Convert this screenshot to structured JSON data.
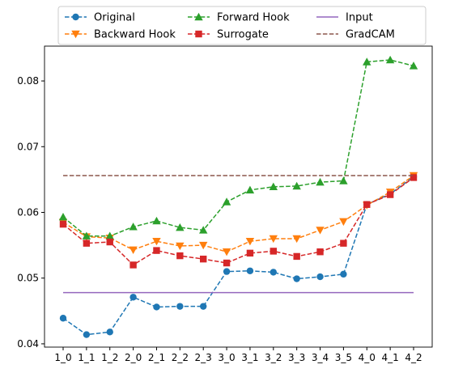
{
  "chart_data": {
    "type": "line",
    "title": "",
    "xlabel": "",
    "ylabel": "",
    "categories": [
      "1_0",
      "1_1",
      "1_2",
      "2_0",
      "2_1",
      "2_2",
      "2_3",
      "3_0",
      "3_1",
      "3_2",
      "3_3",
      "3_4",
      "3_5",
      "4_0",
      "4_1",
      "4_2"
    ],
    "ylim": [
      0.0395,
      0.0853
    ],
    "yticks": [
      0.04,
      0.05,
      0.06,
      0.07,
      0.08
    ],
    "ytick_labels": [
      "0.04",
      "0.05",
      "0.06",
      "0.07",
      "0.08"
    ],
    "grid": false,
    "legend": {
      "placement": "top-center, outside the axes",
      "columns": 3
    },
    "series": [
      {
        "name": "Original",
        "color": "#1f77b4",
        "linestyle": "dashed",
        "marker": "circle",
        "values": [
          0.0439,
          0.0414,
          0.0418,
          0.0471,
          0.0456,
          0.0457,
          0.0457,
          0.051,
          0.0511,
          0.0509,
          0.0499,
          0.0502,
          0.0506,
          0.0612,
          0.0628,
          0.0654
        ]
      },
      {
        "name": "Backward Hook",
        "color": "#ff7f0e",
        "linestyle": "dashed",
        "marker": "triangle-down",
        "values": [
          0.0585,
          0.0563,
          0.0561,
          0.0543,
          0.0556,
          0.0549,
          0.055,
          0.054,
          0.0556,
          0.056,
          0.056,
          0.0573,
          0.0586,
          0.0611,
          0.0631,
          0.0656
        ]
      },
      {
        "name": "Forward Hook",
        "color": "#2ca02c",
        "linestyle": "dashed",
        "marker": "triangle-up",
        "values": [
          0.0593,
          0.0564,
          0.0564,
          0.0578,
          0.0587,
          0.0577,
          0.0573,
          0.0616,
          0.0634,
          0.0639,
          0.064,
          0.0646,
          0.0648,
          0.0829,
          0.0832,
          0.0823
        ]
      },
      {
        "name": "Surrogate",
        "color": "#d62728",
        "linestyle": "dashed",
        "marker": "square",
        "values": [
          0.0582,
          0.0553,
          0.0555,
          0.052,
          0.0542,
          0.0534,
          0.0529,
          0.0523,
          0.0538,
          0.0541,
          0.0533,
          0.054,
          0.0553,
          0.0612,
          0.0627,
          0.0653
        ]
      },
      {
        "name": "Input",
        "color": "#9467bd",
        "linestyle": "solid",
        "marker": "none",
        "values": [
          0.0478,
          0.0478,
          0.0478,
          0.0478,
          0.0478,
          0.0478,
          0.0478,
          0.0478,
          0.0478,
          0.0478,
          0.0478,
          0.0478,
          0.0478,
          0.0478,
          0.0478,
          0.0478
        ]
      },
      {
        "name": "GradCAM",
        "color": "#8c564b",
        "linestyle": "dashed",
        "marker": "none",
        "values": [
          0.0656,
          0.0656,
          0.0656,
          0.0656,
          0.0656,
          0.0656,
          0.0656,
          0.0656,
          0.0656,
          0.0656,
          0.0656,
          0.0656,
          0.0656,
          0.0656,
          0.0656,
          0.0656
        ]
      }
    ]
  }
}
